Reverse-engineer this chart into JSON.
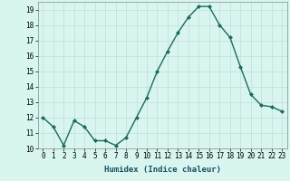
{
  "x": [
    0,
    1,
    2,
    3,
    4,
    5,
    6,
    7,
    8,
    9,
    10,
    11,
    12,
    13,
    14,
    15,
    16,
    17,
    18,
    19,
    20,
    21,
    22,
    23
  ],
  "y": [
    12.0,
    11.4,
    10.2,
    11.8,
    11.4,
    10.5,
    10.5,
    10.2,
    10.7,
    12.0,
    13.3,
    15.0,
    16.3,
    17.5,
    18.5,
    19.2,
    19.2,
    18.0,
    17.2,
    15.3,
    13.5,
    12.8,
    12.7,
    12.4
  ],
  "line_color": "#1a6b5e",
  "marker": "D",
  "marker_size": 2.0,
  "bg_color": "#d8f5f0",
  "grid_color": "#c0ddd8",
  "xlabel": "Humidex (Indice chaleur)",
  "ylim": [
    10,
    19.5
  ],
  "xlim": [
    -0.5,
    23.5
  ],
  "yticks": [
    10,
    11,
    12,
    13,
    14,
    15,
    16,
    17,
    18,
    19
  ],
  "xticks": [
    0,
    1,
    2,
    3,
    4,
    5,
    6,
    7,
    8,
    9,
    10,
    11,
    12,
    13,
    14,
    15,
    16,
    17,
    18,
    19,
    20,
    21,
    22,
    23
  ],
  "xlabel_fontsize": 6.5,
  "tick_fontsize": 5.5,
  "line_width": 1.0
}
